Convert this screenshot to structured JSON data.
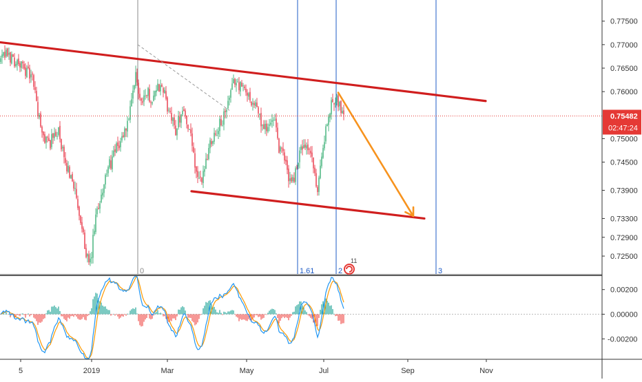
{
  "chart_data": [
    {
      "type": "candlestick",
      "title": "",
      "ylim": [
        0.7212,
        0.7795
      ],
      "y_ticks": [
        {
          "value": 0.775,
          "label": "0.77500"
        },
        {
          "value": 0.77,
          "label": "0.77000"
        },
        {
          "value": 0.765,
          "label": "0.76500"
        },
        {
          "value": 0.76,
          "label": "0.76000"
        },
        {
          "value": 0.75,
          "label": "0.75000"
        },
        {
          "value": 0.745,
          "label": "0.74500"
        },
        {
          "value": 0.739,
          "label": "0.73900"
        },
        {
          "value": 0.733,
          "label": "0.73300"
        },
        {
          "value": 0.729,
          "label": "0.72900"
        },
        {
          "value": 0.725,
          "label": "0.72500"
        }
      ],
      "x_ticks": [
        "5",
        "2019",
        "Mar",
        "May",
        "Jul",
        "Sep",
        "Nov"
      ],
      "current_price": {
        "value": 0.75482,
        "label": "0.75482",
        "countdown": "02:47:24"
      },
      "price_path": [
        [
          0,
          0.7665
        ],
        [
          10,
          0.768
        ],
        [
          22,
          0.7665
        ],
        [
          35,
          0.765
        ],
        [
          48,
          0.7625
        ],
        [
          60,
          0.751
        ],
        [
          72,
          0.749
        ],
        [
          84,
          0.752
        ],
        [
          95,
          0.744
        ],
        [
          105,
          0.742
        ],
        [
          115,
          0.733
        ],
        [
          124,
          0.727
        ],
        [
          130,
          0.7218
        ],
        [
          138,
          0.732
        ],
        [
          148,
          0.739
        ],
        [
          158,
          0.744
        ],
        [
          170,
          0.748
        ],
        [
          180,
          0.751
        ],
        [
          190,
          0.756
        ],
        [
          197,
          0.7635
        ],
        [
          204,
          0.758
        ],
        [
          212,
          0.76
        ],
        [
          220,
          0.7585
        ],
        [
          228,
          0.761
        ],
        [
          238,
          0.76
        ],
        [
          246,
          0.755
        ],
        [
          255,
          0.752
        ],
        [
          265,
          0.7565
        ],
        [
          275,
          0.752
        ],
        [
          283,
          0.744
        ],
        [
          290,
          0.74
        ],
        [
          298,
          0.7445
        ],
        [
          306,
          0.75
        ],
        [
          316,
          0.752
        ],
        [
          325,
          0.7545
        ],
        [
          333,
          0.7585
        ],
        [
          341,
          0.7625
        ],
        [
          350,
          0.761
        ],
        [
          358,
          0.76
        ],
        [
          366,
          0.758
        ],
        [
          374,
          0.756
        ],
        [
          382,
          0.752
        ],
        [
          390,
          0.753
        ],
        [
          398,
          0.7535
        ],
        [
          405,
          0.748
        ],
        [
          413,
          0.746
        ],
        [
          420,
          0.741
        ],
        [
          428,
          0.742
        ],
        [
          436,
          0.748
        ],
        [
          444,
          0.7475
        ],
        [
          452,
          0.747
        ],
        [
          460,
          0.738
        ],
        [
          467,
          0.747
        ],
        [
          474,
          0.752
        ],
        [
          481,
          0.7575
        ],
        [
          488,
          0.7595
        ],
        [
          494,
          0.7565
        ],
        [
          500,
          0.7555
        ]
      ],
      "trendlines": [
        {
          "name": "upper channel",
          "color": "#d01e1e",
          "from": {
            "x": 0,
            "y": 0.7705
          },
          "to": {
            "x": 705,
            "y": 0.758
          }
        },
        {
          "name": "lower channel",
          "color": "#d01e1e",
          "from": {
            "x": 278,
            "y": 0.7388
          },
          "to": {
            "x": 616,
            "y": 0.733
          }
        },
        {
          "name": "projection arrow",
          "color": "#f7931e",
          "from": {
            "x": 491,
            "y": 0.7598
          },
          "to": {
            "x": 600,
            "y": 0.7335
          }
        },
        {
          "name": "dashed guide",
          "color": "#9a9a9a",
          "from": {
            "x": 200,
            "y": 0.77
          },
          "to": {
            "x": 333,
            "y": 0.756
          }
        }
      ],
      "vertical_lines": [
        {
          "x": 200,
          "label": "0",
          "color": "#888888"
        },
        {
          "x": 432,
          "label": "1.61",
          "color": "#1e5bc6"
        },
        {
          "x": 488,
          "label": "2",
          "color": "#1e5bc6"
        },
        {
          "x": 633,
          "label": "3",
          "color": "#1e5bc6"
        }
      ],
      "event_marker": {
        "label": "11"
      }
    },
    {
      "type": "oscillator",
      "ylim": [
        -0.0036,
        0.0031
      ],
      "y_ticks": [
        {
          "value": 0.002,
          "label": "0.00200"
        },
        {
          "value": 0.0,
          "label": "0.00000"
        },
        {
          "value": -0.002,
          "label": "-0.00200"
        }
      ],
      "series": [
        {
          "color": "#2196f3",
          "role": "fast line"
        },
        {
          "color": "#ff9800",
          "role": "slow line"
        }
      ]
    }
  ],
  "colors": {
    "up_candle": "#53b987",
    "down_candle": "#eb4d5c",
    "histogram_up": "#26a69a",
    "histogram_down": "#ef5350",
    "price_label_bg": "#e53935"
  }
}
